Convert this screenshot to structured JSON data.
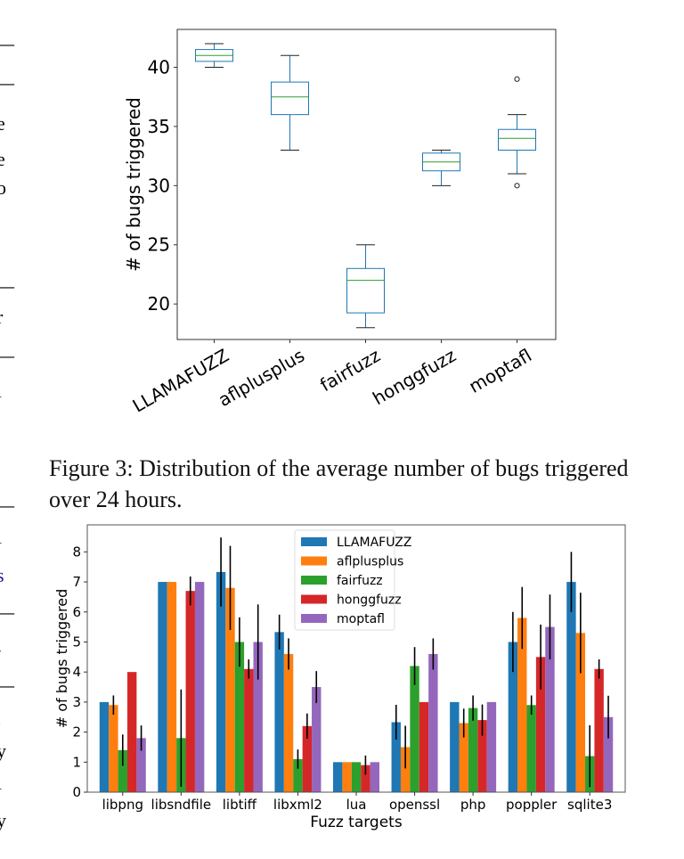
{
  "margin_fragments": [
    "—",
    "—",
    "e",
    "e",
    "o",
    "—",
    "r",
    "—",
    "l",
    ".",
    ".",
    "—",
    "l",
    "s",
    "—",
    "-",
    "—",
    ",",
    "y",
    "l",
    "y"
  ],
  "caption": "Figure 3: Distribution of the average number of bugs triggered over 24 hours.",
  "chart_data": [
    {
      "type": "box",
      "title": "",
      "xlabel": "",
      "ylabel": "# of bugs triggered",
      "ylim": [
        17,
        43.2
      ],
      "yticks": [
        20,
        25,
        30,
        35,
        40
      ],
      "grid": false,
      "categories": [
        "LLAMAFUZZ",
        "aflplusplus",
        "fairfuzz",
        "honggfuzz",
        "moptafl"
      ],
      "boxes": [
        {
          "name": "LLAMAFUZZ",
          "whisker_low": 40,
          "q1": 40.5,
          "median": 41,
          "q3": 41.5,
          "whisker_high": 42,
          "outliers": []
        },
        {
          "name": "aflplusplus",
          "whisker_low": 33,
          "q1": 36,
          "median": 37.5,
          "q3": 38.75,
          "whisker_high": 41,
          "outliers": []
        },
        {
          "name": "fairfuzz",
          "whisker_low": 18,
          "q1": 19.25,
          "median": 22,
          "q3": 23,
          "whisker_high": 25,
          "outliers": []
        },
        {
          "name": "honggfuzz",
          "whisker_low": 30,
          "q1": 31.25,
          "median": 32,
          "q3": 32.75,
          "whisker_high": 33,
          "outliers": []
        },
        {
          "name": "moptafl",
          "whisker_low": 31,
          "q1": 33,
          "median": 34,
          "q3": 34.75,
          "whisker_high": 36,
          "outliers": [
            39,
            30
          ]
        }
      ],
      "colors": {
        "box": "#1f77b4",
        "median": "#2ca02c",
        "whisker": "#1f4e79"
      }
    },
    {
      "type": "bar",
      "title": "",
      "xlabel": "Fuzz targets",
      "ylabel": "# of bugs triggered",
      "ylim": [
        0,
        8.9
      ],
      "yticks": [
        0,
        1,
        2,
        3,
        4,
        5,
        6,
        7,
        8
      ],
      "grid": false,
      "legend": "top-center",
      "categories": [
        "libpng",
        "libsndfile",
        "libtiff",
        "libxml2",
        "lua",
        "openssl",
        "php",
        "poppler",
        "sqlite3"
      ],
      "series": [
        {
          "name": "LLAMAFUZZ",
          "color": "#1f77b4",
          "values": [
            3,
            7,
            7.33,
            5.33,
            1,
            2.33,
            3,
            5,
            7
          ],
          "err": [
            0,
            0,
            1.15,
            0.58,
            0,
            0.58,
            0,
            1,
            1
          ]
        },
        {
          "name": "aflplusplus",
          "color": "#ff7f0e",
          "values": [
            2.9,
            7,
            6.8,
            4.6,
            1,
            1.5,
            2.3,
            5.8,
            5.3
          ],
          "err": [
            0.32,
            0,
            1.4,
            0.52,
            0,
            0.71,
            0.48,
            1.03,
            1.34
          ]
        },
        {
          "name": "fairfuzz",
          "color": "#2ca02c",
          "values": [
            1.4,
            1.8,
            5,
            1.1,
            1,
            4.2,
            2.8,
            2.9,
            1.2
          ],
          "err": [
            0.52,
            1.62,
            0.82,
            0.32,
            0,
            0.63,
            0.42,
            0.32,
            1.03
          ]
        },
        {
          "name": "honggfuzz",
          "color": "#d62728",
          "values": [
            4,
            6.7,
            4.1,
            2.2,
            0.9,
            3,
            2.4,
            4.5,
            4.1
          ],
          "err": [
            0,
            0.48,
            0.32,
            0.42,
            0.32,
            0,
            0.52,
            1.08,
            0.32
          ]
        },
        {
          "name": "moptafl",
          "color": "#9467bd",
          "values": [
            1.8,
            7,
            5,
            3.5,
            1,
            4.6,
            3,
            5.5,
            2.5
          ],
          "err": [
            0.42,
            0,
            1.25,
            0.53,
            0,
            0.52,
            0,
            1.08,
            0.71
          ]
        }
      ]
    }
  ]
}
